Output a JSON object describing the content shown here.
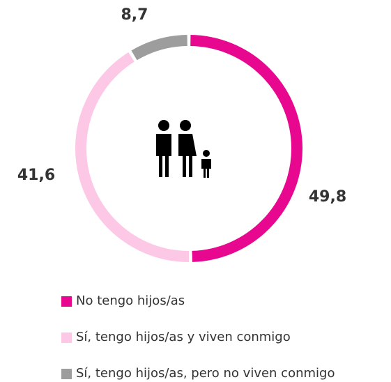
{
  "chart_data": {
    "type": "donut",
    "categories": [
      "No tengo hijos/as",
      "Sí, tengo hijos/as y viven conmigo",
      "Sí, tengo hijos/as, pero no viven conmigo"
    ],
    "values": [
      49.8,
      41.6,
      8.7
    ],
    "value_labels": [
      "49,8",
      "41,6",
      "8,7"
    ],
    "colors": [
      "#e8078f",
      "#fcc8e6",
      "#9d9d9d"
    ]
  }
}
